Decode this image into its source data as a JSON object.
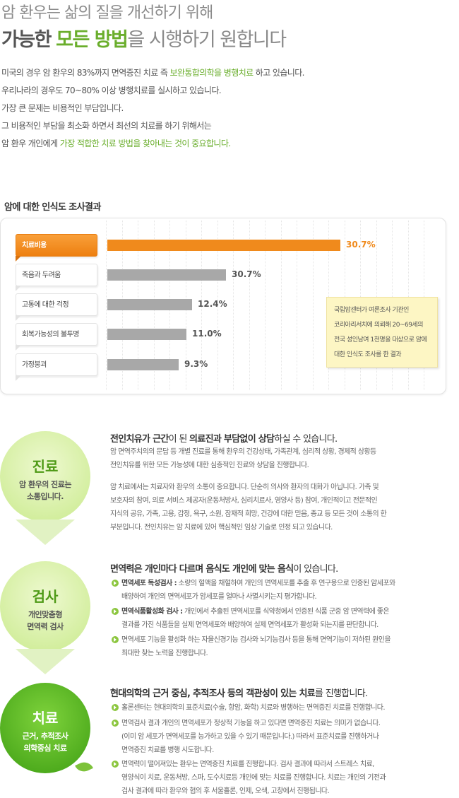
{
  "hero": {
    "line1": "암 환우는 삶의 질을 개선하기 위해",
    "line2_a": "가능한",
    "line2_b": "모든 방법",
    "line2_c": "을 시행하기 원합니다"
  },
  "intro": {
    "l1_a": "미국의 경우 암 환우의 83%까지 면역증진 치료 즉 ",
    "l1_b": "보완통합의학을 병행치료",
    "l1_c": " 하고 있습니다.",
    "l2": "우리나라의 경우도 70~80% 이상 병행치료를 실시하고 있습니다.",
    "l3": "가장 큰 문제는 비용적인 부담입니다.",
    "l4": "그 비용적인 부담을 최소화 하면서 최선의 치료를 하기 위해서는",
    "l5_a": "암 환우 개인에게 ",
    "l5_b": "가장 적합한 치료 방법을 찾아내는 것이 중요합니다."
  },
  "survey": {
    "title": "암에 대한 인식도 조사결과",
    "colors": {
      "active": "#f08a1c",
      "inactive": "#a8a8a8"
    },
    "note": [
      "국립암센터가 여론조사 기관인",
      "코리아리서치에 의뢰해 20~69세의",
      "전국 성인남여 1천명을 대상으로 암에",
      "대한 인식도 조사를 한 결과"
    ]
  },
  "chart_data": {
    "type": "bar",
    "orientation": "horizontal",
    "categories": [
      "치료비용",
      "죽음과 두려움",
      "고통에 대한 걱정",
      "회복가능성의 불투명",
      "가정붕괴"
    ],
    "values": [
      30.7,
      30.7,
      12.4,
      11.0,
      9.3
    ],
    "value_labels": [
      "30.7%",
      "30.7%",
      "12.4%",
      "11.0%",
      "9.3%"
    ],
    "highlight_index": 0,
    "title": "암에 대한 인식도 조사결과",
    "grid": true
  },
  "sections": [
    {
      "circle_title": "진료",
      "circle_sub": [
        "암 환우의 진료는",
        "소통입니다."
      ],
      "head_a": "전인치유가 근간",
      "head_b": "이 된 ",
      "head_c": "의료진과 부담없이 상담",
      "head_d": "하실 수 있습니다.",
      "p1": [
        "암 면역주치의의 문답 등 개별 진료를 통해 환우의 건강상태, 가족관계, 심리적 상황, 경제적 상황등",
        "전인치유를 위한 모든 가능성에 대한 심층적인 진료와 상담을 진행합니다."
      ],
      "p2": [
        "암 치료에서는 치료자와 환우의 소통이 중요합니다. 단순히 의사와 환자의 대화가 아닙니다. 가족 및",
        "보호자의 참여, 의료 서비스 제공자(운동처방사, 심리치료사, 영양사 등) 참여, 개인적이고 전문적인",
        "지식의 공유, 가족, 고용, 감정, 욕구, 소원, 잠재적 희망, 건강에 대한 믿음, 종교 등 모든 것이 소통의 한",
        "부분입니다. 전인치유는 암 치료에 있어 핵심적인 임상 기술로 인정 되고 있습니다."
      ]
    },
    {
      "circle_title": "검사",
      "circle_sub": [
        "개인맞춤형",
        "면역력 검사"
      ],
      "head_a": "면역력은 개인마다 다르며 음식도 개인에 맞는 음식",
      "head_b": "이 있습니다.",
      "bullets": [
        {
          "label": "면역세포 독성검사 :",
          "lines": [
            " 소량의 혈액을 채혈하여 개인의 면역세포를 추출 후  연구용으로 인증된 암세포와",
            "배양하여 개인의 면역세포가 암세포를 얼마나 사멸시키는지 평가합니다."
          ]
        },
        {
          "label": "면역식품활성화 검사 :",
          "lines": [
            " 개인에서 추출된 면역세포를 식약청에서 인증된 식품 군중 암 면역력에 좋은",
            "결과를 가진 식품들을 실제 면역세포와 배양하여 실제 면역세포가 활성화 되는지를 판단합니다."
          ]
        },
        {
          "label": "",
          "lines": [
            "면역세포 기능을 활성화 하는 자율신경기능 검사와 뇌기능검사 등을 통해 면역기능이 저하된 원인을",
            "최대한 찾는 노력을 진행합니다."
          ]
        }
      ]
    },
    {
      "circle_title": "치료",
      "circle_sub": [
        "근거, 추적조사",
        "의학중심 치료"
      ],
      "head_a": "현대의학의 근거 중심, 추적조사 등의 객관성이 있는 치료",
      "head_b": "를 진행합니다.",
      "bullets": [
        {
          "label": "",
          "lines": [
            "홀론센터는 현대의학의 표준치료(수술, 항암, 화학) 치료와 병행하는 면역증진 치료를 진행합니다."
          ]
        },
        {
          "label": "",
          "lines": [
            "면역검사 결과 개인의 면역세포가 정상적 기능을 하고 있다면 면역증진 치료는 의미가 없습니다.",
            "(이미 암 세포가 면역세포를 능가하고 있을 수 있기 때문입니다.) 따라서 표준치료를 진행하거나",
            "면역증진 치료를 병행 시도합니다."
          ]
        },
        {
          "label": "",
          "lines": [
            "면역력이 떨어져있는 환우는 면역증진 치료를 진행합니다. 검사 결과에 따라서 스트레스 치료,",
            "영양식이 치료, 운동처방, 스파, 도수치료등 개인에 맞는 치료를 진행합니다. 치료는 개인의 기전과",
            "검사 결과에 따라 환우와 협의 후 서울홀론, 인제, 오색, 고창에서 진행됩니다."
          ]
        }
      ]
    }
  ]
}
